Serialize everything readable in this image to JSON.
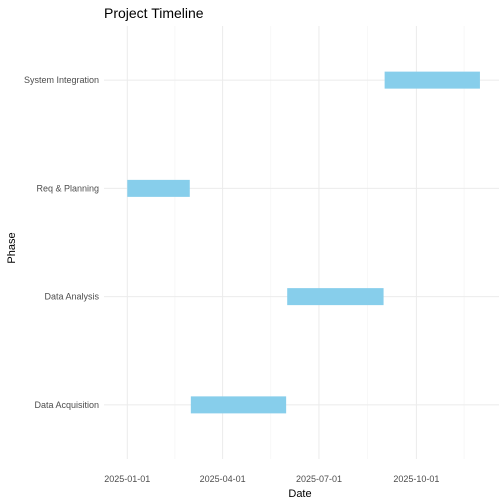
{
  "chart_data": {
    "type": "bar",
    "orientation": "horizontal-gantt",
    "title": "Project Timeline",
    "xlabel": "Date",
    "ylabel": "Phase",
    "categories": [
      "Data Acquisition",
      "Data Analysis",
      "Req & Planning",
      "System Integration"
    ],
    "tasks": [
      {
        "phase": "Req & Planning",
        "start": "2025-01-01",
        "end": "2025-03-01"
      },
      {
        "phase": "Data Acquisition",
        "start": "2025-03-02",
        "end": "2025-05-31"
      },
      {
        "phase": "Data Analysis",
        "start": "2025-06-01",
        "end": "2025-08-31"
      },
      {
        "phase": "System Integration",
        "start": "2025-09-01",
        "end": "2025-11-30"
      }
    ],
    "x_ticks": [
      "2025-01-01",
      "2025-04-01",
      "2025-07-01",
      "2025-10-01"
    ],
    "xlim": [
      "2024-12-10",
      "2025-12-18"
    ],
    "bar_color": "#87CEEB",
    "grid": true,
    "legend": "none"
  }
}
